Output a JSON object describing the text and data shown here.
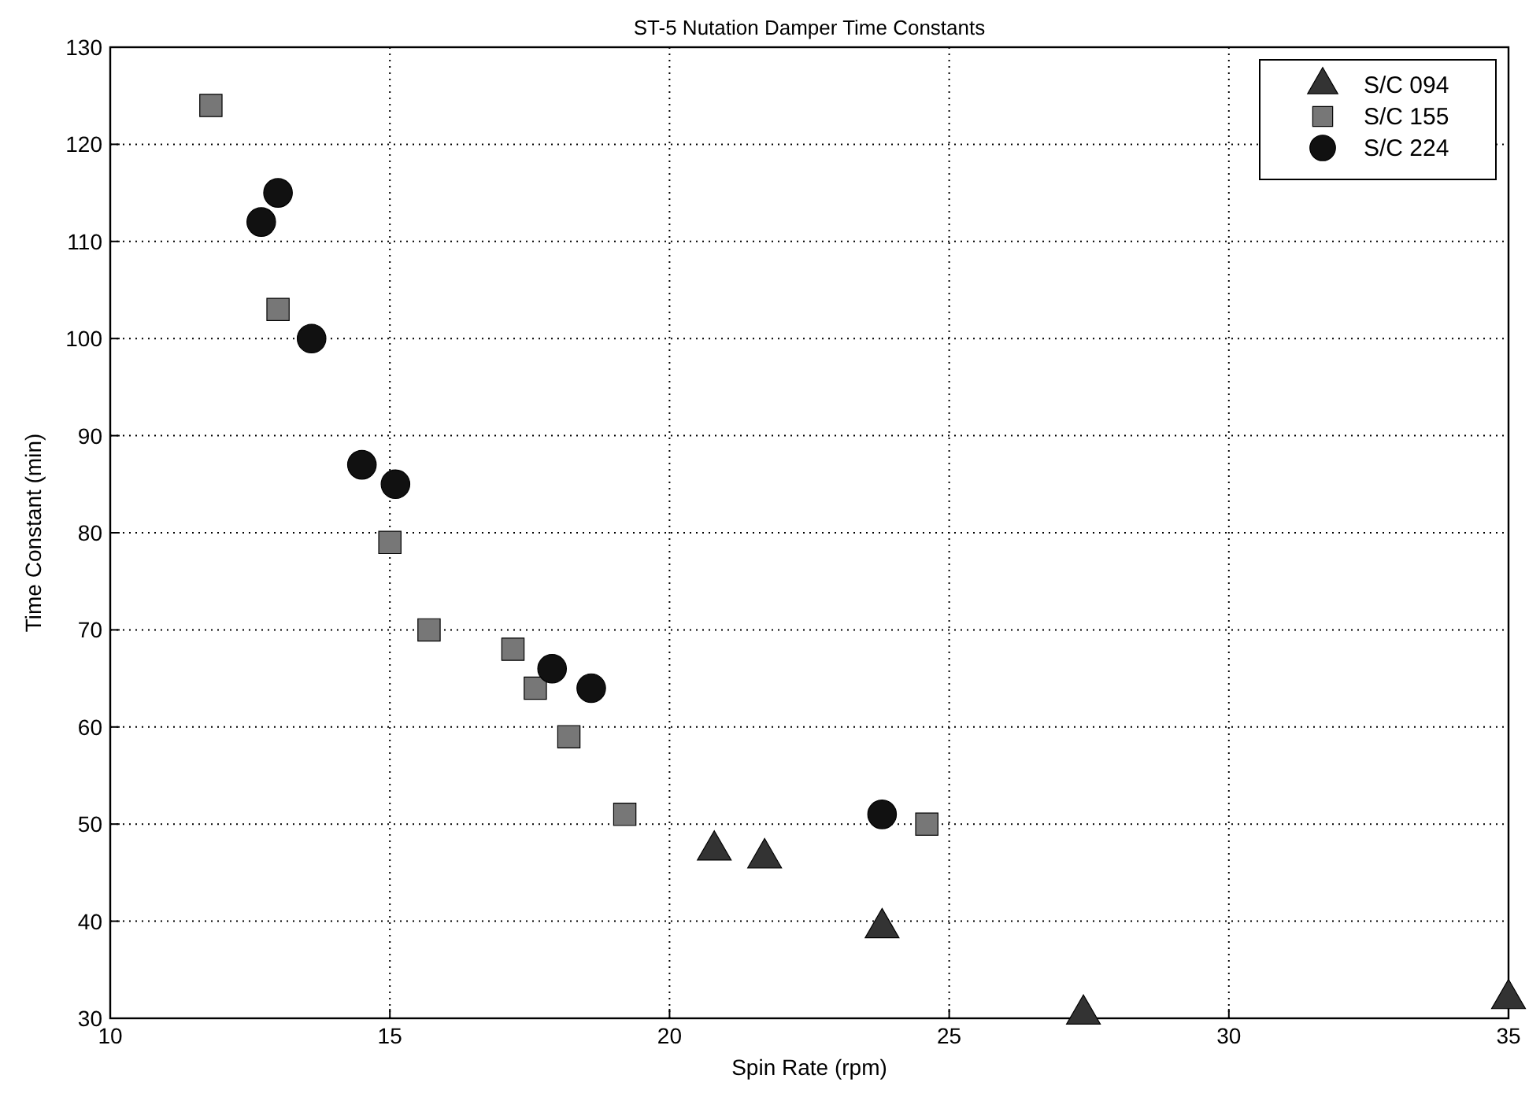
{
  "chart_data": {
    "type": "scatter",
    "title": "ST-5 Nutation Damper Time Constants",
    "xlabel": "Spin Rate (rpm)",
    "ylabel": "Time Constant (min)",
    "xlim": [
      10,
      35
    ],
    "xticks": [
      10,
      15,
      20,
      25,
      30,
      35
    ],
    "ylim": [
      30,
      130
    ],
    "yticks": [
      30,
      40,
      50,
      60,
      70,
      80,
      90,
      100,
      110,
      120,
      130
    ],
    "grid": true,
    "legend": "top right",
    "series": [
      {
        "name": "S/C 094",
        "color": "#333333",
        "marker": "triangle",
        "x": [
          20.8,
          21.7,
          23.8,
          27.4,
          35
        ],
        "values": [
          47.3,
          46.5,
          39.3,
          30.4,
          32
        ]
      },
      {
        "name": "S/C 155",
        "color": "#777777",
        "marker": "square",
        "x": [
          11.8,
          13,
          15,
          15.7,
          17.2,
          17.6,
          18.2,
          19.2,
          24.6
        ],
        "values": [
          124,
          103,
          79,
          70,
          68,
          64,
          59,
          51,
          50
        ]
      },
      {
        "name": "S/C 224",
        "color": "#111111",
        "marker": "circle",
        "x": [
          12.7,
          13,
          13.6,
          14.5,
          15.1,
          17.9,
          18.6,
          23.8
        ],
        "values": [
          112,
          115,
          100,
          87,
          85,
          66,
          64,
          51
        ]
      }
    ]
  }
}
